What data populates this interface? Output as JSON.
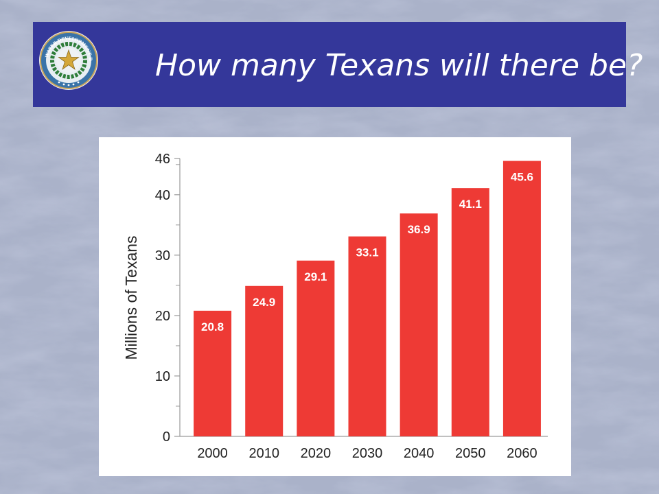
{
  "slide": {
    "title": "How many Texans will there be?",
    "background_color": "#aab2c9",
    "banner_color": "#34379a",
    "logo": {
      "icon": "texas-water-development-board-seal-icon",
      "text": "TEXAS WATER DEVELOPMENT BOARD"
    }
  },
  "chart_data": {
    "type": "bar",
    "categories": [
      "2000",
      "2010",
      "2020",
      "2030",
      "2040",
      "2050",
      "2060"
    ],
    "values": [
      20.8,
      24.9,
      29.1,
      33.1,
      36.9,
      41.1,
      45.6
    ],
    "value_labels": [
      "20.8",
      "24.9",
      "29.1",
      "33.1",
      "36.9",
      "41.1",
      "45.6"
    ],
    "title": "",
    "xlabel": "",
    "ylabel": "Millions of Texans",
    "ylim": [
      0,
      46
    ],
    "yticks": [
      0,
      10,
      20,
      30,
      40,
      46
    ],
    "ytick_labels": [
      "0",
      "10",
      "20",
      "30",
      "40",
      "46"
    ],
    "grid": false,
    "bar_color": "#ee3a35",
    "label_color": "#ffffff"
  }
}
